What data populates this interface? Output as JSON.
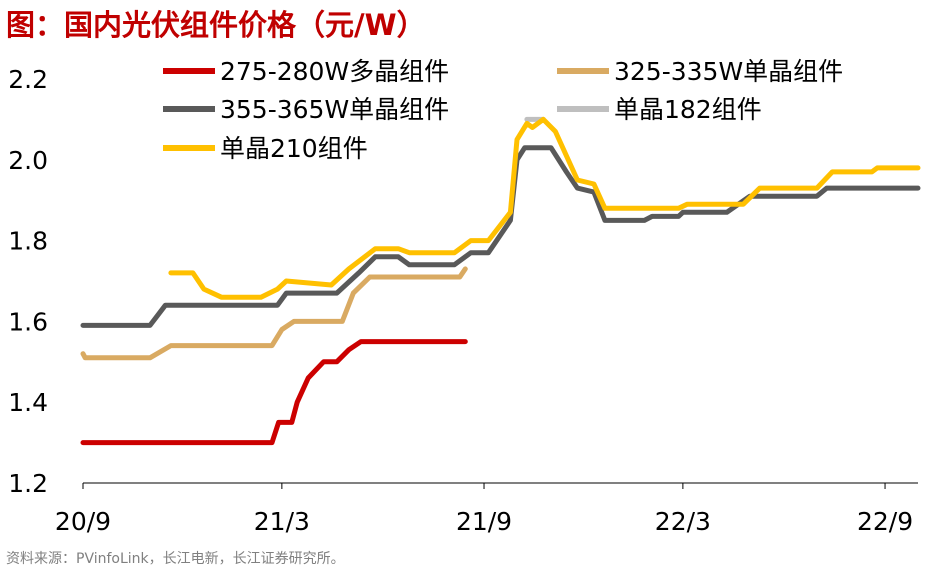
{
  "title": "图：国内光伏组件价格（元/W）",
  "source": "资料来源：PVinfoLink，长江电新，长江证券研究所。",
  "chart_data": {
    "type": "line",
    "title": "图：国内光伏组件价格（元/W）",
    "xlabel": "",
    "ylabel": "",
    "x_ticks": [
      "20/9",
      "21/3",
      "21/9",
      "22/3",
      "22/9"
    ],
    "x_range": [
      "2020-09",
      "2022-10"
    ],
    "ylim": [
      1.2,
      2.2
    ],
    "y_ticks": [
      "1.2",
      "1.4",
      "1.6",
      "1.8",
      "2.0",
      "2.2"
    ],
    "grid": false,
    "legend": "top",
    "series": [
      {
        "name": "275-280W多晶组件",
        "color": "#cc0000",
        "points": [
          [
            "2020-09",
            1.3
          ],
          [
            "2021-02-20",
            1.3
          ],
          [
            "2021-02-26",
            1.35
          ],
          [
            "2021-03-10",
            1.35
          ],
          [
            "2021-03-15",
            1.4
          ],
          [
            "2021-03-25",
            1.46
          ],
          [
            "2021-04-08",
            1.5
          ],
          [
            "2021-04-20",
            1.5
          ],
          [
            "2021-05-01",
            1.53
          ],
          [
            "2021-05-12",
            1.55
          ],
          [
            "2021-08-15",
            1.55
          ]
        ]
      },
      {
        "name": "325-335W单晶组件",
        "color": "#d9aa62",
        "points": [
          [
            "2020-09",
            1.52
          ],
          [
            "2020-09-03",
            1.51
          ],
          [
            "2020-11-01",
            1.51
          ],
          [
            "2020-11-20",
            1.54
          ],
          [
            "2021-02-20",
            1.54
          ],
          [
            "2021-03-01",
            1.58
          ],
          [
            "2021-03-12",
            1.6
          ],
          [
            "2021-04-25",
            1.6
          ],
          [
            "2021-05-05",
            1.67
          ],
          [
            "2021-05-20",
            1.71
          ],
          [
            "2021-08-10",
            1.71
          ],
          [
            "2021-08-15",
            1.73
          ]
        ]
      },
      {
        "name": "355-365W单晶组件",
        "color": "#595959",
        "points": [
          [
            "2020-09",
            1.59
          ],
          [
            "2020-11-01",
            1.59
          ],
          [
            "2020-11-15",
            1.64
          ],
          [
            "2021-02-25",
            1.64
          ],
          [
            "2021-03-05",
            1.67
          ],
          [
            "2021-04-20",
            1.67
          ],
          [
            "2021-05-10",
            1.72
          ],
          [
            "2021-05-25",
            1.76
          ],
          [
            "2021-06-15",
            1.76
          ],
          [
            "2021-06-25",
            1.74
          ],
          [
            "2021-08-05",
            1.74
          ],
          [
            "2021-08-20",
            1.77
          ],
          [
            "2021-09-05",
            1.77
          ],
          [
            "2021-09-25",
            1.85
          ],
          [
            "2021-10-01",
            2.0
          ],
          [
            "2021-10-08",
            2.03
          ],
          [
            "2021-11-01",
            2.03
          ],
          [
            "2021-11-15",
            1.97
          ],
          [
            "2021-11-25",
            1.93
          ],
          [
            "2021-12-10",
            1.92
          ],
          [
            "2021-12-20",
            1.85
          ],
          [
            "2022-01-25",
            1.85
          ],
          [
            "2022-02-01",
            1.86
          ],
          [
            "2022-02-25",
            1.86
          ],
          [
            "2022-03-01",
            1.87
          ],
          [
            "2022-04-10",
            1.87
          ],
          [
            "2022-05-01",
            1.91
          ],
          [
            "2022-07-01",
            1.91
          ],
          [
            "2022-07-10",
            1.93
          ],
          [
            "2022-10",
            1.93
          ]
        ]
      },
      {
        "name": "单晶182组件",
        "color": "#bfbfbf",
        "points": [
          [
            "2021-10-10",
            2.1
          ],
          [
            "2021-10-25",
            2.1
          ]
        ]
      },
      {
        "name": "单晶210组件",
        "color": "#ffc000",
        "points": [
          [
            "2020-11-20",
            1.72
          ],
          [
            "2020-12-10",
            1.72
          ],
          [
            "2020-12-20",
            1.68
          ],
          [
            "2021-01-05",
            1.66
          ],
          [
            "2021-02-10",
            1.66
          ],
          [
            "2021-02-25",
            1.68
          ],
          [
            "2021-03-05",
            1.7
          ],
          [
            "2021-04-15",
            1.69
          ],
          [
            "2021-05-01",
            1.73
          ],
          [
            "2021-05-25",
            1.78
          ],
          [
            "2021-06-15",
            1.78
          ],
          [
            "2021-06-25",
            1.77
          ],
          [
            "2021-08-05",
            1.77
          ],
          [
            "2021-08-20",
            1.8
          ],
          [
            "2021-09-05",
            1.8
          ],
          [
            "2021-09-25",
            1.87
          ],
          [
            "2021-10-01",
            2.05
          ],
          [
            "2021-10-10",
            2.09
          ],
          [
            "2021-10-15",
            2.08
          ],
          [
            "2021-10-25",
            2.1
          ],
          [
            "2021-11-05",
            2.07
          ],
          [
            "2021-11-25",
            1.95
          ],
          [
            "2021-12-10",
            1.94
          ],
          [
            "2021-12-20",
            1.88
          ],
          [
            "2022-02-25",
            1.88
          ],
          [
            "2022-03-05",
            1.89
          ],
          [
            "2022-04-25",
            1.89
          ],
          [
            "2022-05-10",
            1.93
          ],
          [
            "2022-07-01",
            1.93
          ],
          [
            "2022-07-15",
            1.97
          ],
          [
            "2022-08-20",
            1.97
          ],
          [
            "2022-08-25",
            1.98
          ],
          [
            "2022-10",
            1.98
          ]
        ]
      }
    ]
  }
}
